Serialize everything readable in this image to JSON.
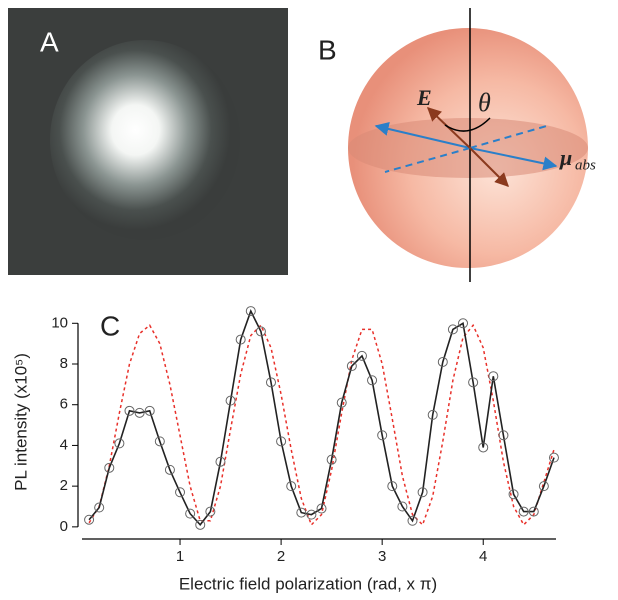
{
  "panel_a": {
    "label": "A"
  },
  "panel_b": {
    "label": "B",
    "e_field": "E⃗",
    "theta": "θ",
    "mu": "μ⃗",
    "mu_sub": "abs"
  },
  "chart_data": {
    "type": "line",
    "panel_label": "C",
    "x_label": "Electric field polarization (rad, x π)",
    "y_label": "PL intensity (x10⁵)",
    "x": [
      0.1,
      0.2,
      0.3,
      0.4,
      0.5,
      0.6,
      0.7,
      0.8,
      0.9,
      1.0,
      1.1,
      1.2,
      1.3,
      1.4,
      1.5,
      1.6,
      1.7,
      1.8,
      1.9,
      2.0,
      2.1,
      2.2,
      2.3,
      2.4,
      2.5,
      2.6,
      2.7,
      2.8,
      2.9,
      3.0,
      3.1,
      3.2,
      3.3,
      3.4,
      3.5,
      3.6,
      3.7,
      3.8,
      3.9,
      4.0,
      4.1,
      4.2,
      4.3,
      4.4,
      4.5,
      4.6,
      4.7
    ],
    "series": [
      {
        "color": "#222222",
        "markers": true,
        "dashed": false,
        "values": [
          0.35,
          0.95,
          2.9,
          4.1,
          5.7,
          5.6,
          5.7,
          4.2,
          2.8,
          1.7,
          0.65,
          0.1,
          0.75,
          3.2,
          6.2,
          9.2,
          10.6,
          9.6,
          7.1,
          4.2,
          2.0,
          0.7,
          0.6,
          0.9,
          3.3,
          6.1,
          7.9,
          8.4,
          7.2,
          4.5,
          2.0,
          1.0,
          0.3,
          1.7,
          5.5,
          8.1,
          9.7,
          10.0,
          7.1,
          3.9,
          7.4,
          4.5,
          1.6,
          0.75,
          0.75,
          2.0,
          3.4
        ]
      },
      {
        "color": "#e8302a",
        "markers": false,
        "dashed": true,
        "values": [
          0.2,
          1.0,
          3.0,
          5.6,
          8.0,
          9.5,
          9.9,
          9.0,
          7.0,
          4.5,
          2.0,
          0.3,
          0.3,
          2.0,
          4.8,
          7.5,
          9.4,
          9.9,
          8.8,
          6.5,
          3.8,
          1.4,
          0.1,
          0.6,
          2.8,
          5.6,
          8.2,
          9.7,
          9.7,
          8.0,
          5.3,
          2.5,
          0.6,
          0.1,
          1.5,
          4.2,
          7.2,
          9.3,
          9.9,
          8.8,
          6.2,
          3.2,
          1.0,
          0.1,
          0.6,
          2.2,
          3.8
        ]
      }
    ],
    "xlim": [
      0.03,
      4.72
    ],
    "ylim": [
      -0.4,
      10.8
    ],
    "xticks": [
      1,
      2,
      3,
      4
    ],
    "yticks": [
      0,
      2,
      4,
      6,
      8,
      10
    ]
  }
}
